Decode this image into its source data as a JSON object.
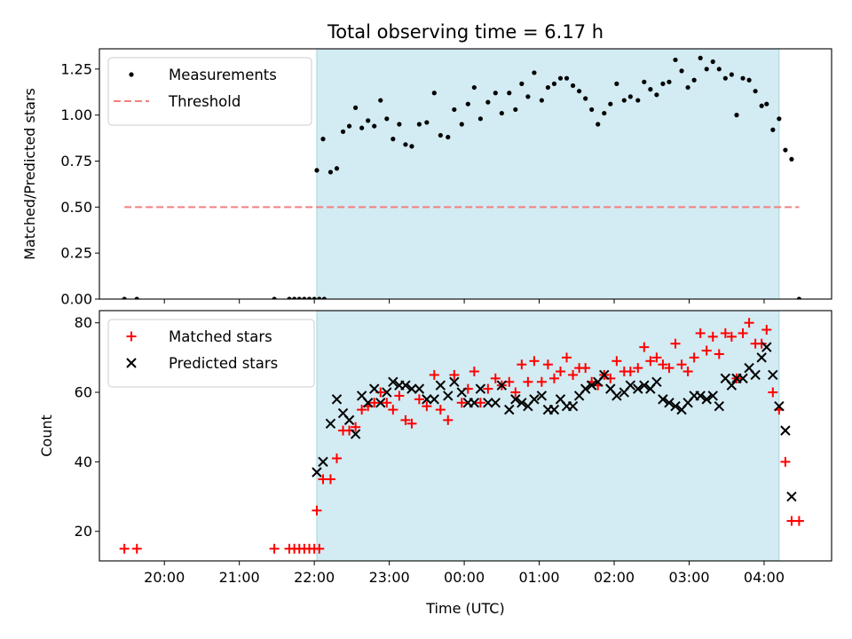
{
  "chart_data": [
    {
      "type": "scatter",
      "title": "Total observing time = 6.17 h",
      "ylabel": "Matched/Predicted stars",
      "xlabel": "",
      "xlim": [
        "19:08",
        "04:54"
      ],
      "ylim": [
        0,
        1.36
      ],
      "yticks": [
        "0.00",
        "0.25",
        "0.50",
        "0.75",
        "1.00",
        "1.25"
      ],
      "grid": false,
      "legend_position": "top-left",
      "observing_window": [
        "22:02",
        "04:12"
      ],
      "observing_window_color": "#d3ebf2",
      "series": [
        {
          "name": "Measurements",
          "marker": "dot",
          "color": "#000000",
          "points": [
            [
              "19:28",
              0.0
            ],
            [
              "19:38",
              0.0
            ],
            [
              "21:28",
              0.0
            ],
            [
              "21:40",
              0.0
            ],
            [
              "21:44",
              0.0
            ],
            [
              "21:48",
              0.0
            ],
            [
              "21:52",
              0.0
            ],
            [
              "21:56",
              0.0
            ],
            [
              "22:00",
              0.0
            ],
            [
              "22:04",
              0.0
            ],
            [
              "22:08",
              0.0
            ],
            [
              "22:02",
              0.7
            ],
            [
              "22:07",
              0.87
            ],
            [
              "22:13",
              0.69
            ],
            [
              "22:18",
              0.71
            ],
            [
              "22:23",
              0.91
            ],
            [
              "22:28",
              0.94
            ],
            [
              "22:33",
              1.04
            ],
            [
              "22:38",
              0.93
            ],
            [
              "22:43",
              0.97
            ],
            [
              "22:48",
              0.94
            ],
            [
              "22:53",
              1.08
            ],
            [
              "22:58",
              0.98
            ],
            [
              "23:03",
              0.87
            ],
            [
              "23:08",
              0.95
            ],
            [
              "23:13",
              0.84
            ],
            [
              "23:18",
              0.83
            ],
            [
              "23:24",
              0.95
            ],
            [
              "23:30",
              0.96
            ],
            [
              "23:36",
              1.12
            ],
            [
              "23:41",
              0.89
            ],
            [
              "23:47",
              0.88
            ],
            [
              "23:52",
              1.03
            ],
            [
              "23:58",
              0.95
            ],
            [
              "00:03",
              1.06
            ],
            [
              "00:08",
              1.15
            ],
            [
              "00:13",
              0.98
            ],
            [
              "00:19",
              1.07
            ],
            [
              "00:25",
              1.12
            ],
            [
              "00:30",
              1.01
            ],
            [
              "00:36",
              1.12
            ],
            [
              "00:41",
              1.03
            ],
            [
              "00:46",
              1.17
            ],
            [
              "00:51",
              1.1
            ],
            [
              "00:56",
              1.23
            ],
            [
              "01:02",
              1.08
            ],
            [
              "01:07",
              1.15
            ],
            [
              "01:12",
              1.17
            ],
            [
              "01:17",
              1.2
            ],
            [
              "01:22",
              1.2
            ],
            [
              "01:27",
              1.16
            ],
            [
              "01:32",
              1.13
            ],
            [
              "01:37",
              1.09
            ],
            [
              "01:42",
              1.03
            ],
            [
              "01:47",
              0.95
            ],
            [
              "01:52",
              1.01
            ],
            [
              "01:57",
              1.06
            ],
            [
              "02:02",
              1.17
            ],
            [
              "02:08",
              1.08
            ],
            [
              "02:13",
              1.1
            ],
            [
              "02:19",
              1.08
            ],
            [
              "02:24",
              1.18
            ],
            [
              "02:29",
              1.14
            ],
            [
              "02:34",
              1.11
            ],
            [
              "02:39",
              1.17
            ],
            [
              "02:44",
              1.18
            ],
            [
              "02:49",
              1.3
            ],
            [
              "02:54",
              1.24
            ],
            [
              "02:59",
              1.15
            ],
            [
              "03:04",
              1.19
            ],
            [
              "03:09",
              1.31
            ],
            [
              "03:14",
              1.25
            ],
            [
              "03:19",
              1.29
            ],
            [
              "03:24",
              1.25
            ],
            [
              "03:29",
              1.2
            ],
            [
              "03:34",
              1.22
            ],
            [
              "03:38",
              1.0
            ],
            [
              "03:43",
              1.2
            ],
            [
              "03:48",
              1.19
            ],
            [
              "03:53",
              1.13
            ],
            [
              "03:58",
              1.05
            ],
            [
              "04:02",
              1.06
            ],
            [
              "04:07",
              0.92
            ],
            [
              "04:12",
              0.98
            ],
            [
              "04:17",
              0.81
            ],
            [
              "04:22",
              0.76
            ],
            [
              "04:28",
              0.0
            ]
          ]
        },
        {
          "name": "Threshold",
          "marker": "dashed-line",
          "color": "#f08080",
          "points": [
            [
              "19:28",
              0.5
            ],
            [
              "04:28",
              0.5
            ]
          ]
        }
      ]
    },
    {
      "type": "scatter",
      "title": "",
      "ylabel": "Count",
      "xlabel": "Time (UTC)",
      "xlim": [
        "19:08",
        "04:54"
      ],
      "ylim": [
        11.5,
        83.5
      ],
      "yticks": [
        "20",
        "40",
        "60",
        "80"
      ],
      "xticks": [
        "20:00",
        "21:00",
        "22:00",
        "23:00",
        "00:00",
        "01:00",
        "02:00",
        "03:00",
        "04:00"
      ],
      "grid": false,
      "legend_position": "top-left",
      "observing_window": [
        "22:02",
        "04:12"
      ],
      "observing_window_color": "#d3ebf2",
      "series": [
        {
          "name": "Matched stars",
          "marker": "plus",
          "color": "#ff0000",
          "points": [
            [
              "19:28",
              15
            ],
            [
              "19:38",
              15
            ],
            [
              "21:28",
              15
            ],
            [
              "21:40",
              15
            ],
            [
              "21:44",
              15
            ],
            [
              "21:48",
              15
            ],
            [
              "21:52",
              15
            ],
            [
              "21:56",
              15
            ],
            [
              "22:00",
              15
            ],
            [
              "22:04",
              15
            ],
            [
              "22:02",
              26
            ],
            [
              "22:07",
              35
            ],
            [
              "22:13",
              35
            ],
            [
              "22:18",
              41
            ],
            [
              "22:23",
              49
            ],
            [
              "22:28",
              49
            ],
            [
              "22:33",
              50
            ],
            [
              "22:38",
              55
            ],
            [
              "22:43",
              56
            ],
            [
              "22:48",
              57
            ],
            [
              "22:53",
              60
            ],
            [
              "22:58",
              57
            ],
            [
              "23:03",
              55
            ],
            [
              "23:08",
              59
            ],
            [
              "23:13",
              52
            ],
            [
              "23:18",
              51
            ],
            [
              "23:24",
              58
            ],
            [
              "23:30",
              56
            ],
            [
              "23:36",
              65
            ],
            [
              "23:41",
              55
            ],
            [
              "23:47",
              52
            ],
            [
              "23:52",
              65
            ],
            [
              "23:58",
              57
            ],
            [
              "00:03",
              61
            ],
            [
              "00:08",
              66
            ],
            [
              "00:13",
              57
            ],
            [
              "00:19",
              61
            ],
            [
              "00:25",
              64
            ],
            [
              "00:30",
              62
            ],
            [
              "00:36",
              63
            ],
            [
              "00:41",
              60
            ],
            [
              "00:46",
              68
            ],
            [
              "00:51",
              63
            ],
            [
              "00:56",
              69
            ],
            [
              "01:02",
              63
            ],
            [
              "01:07",
              68
            ],
            [
              "01:12",
              64
            ],
            [
              "01:17",
              66
            ],
            [
              "01:22",
              70
            ],
            [
              "01:27",
              65
            ],
            [
              "01:32",
              67
            ],
            [
              "01:37",
              67
            ],
            [
              "01:42",
              63
            ],
            [
              "01:47",
              62
            ],
            [
              "01:52",
              65
            ],
            [
              "01:57",
              64
            ],
            [
              "02:02",
              69
            ],
            [
              "02:08",
              66
            ],
            [
              "02:13",
              66
            ],
            [
              "02:19",
              67
            ],
            [
              "02:24",
              73
            ],
            [
              "02:29",
              69
            ],
            [
              "02:34",
              70
            ],
            [
              "02:39",
              68
            ],
            [
              "02:44",
              67
            ],
            [
              "02:49",
              74
            ],
            [
              "02:54",
              68
            ],
            [
              "02:59",
              66
            ],
            [
              "03:04",
              70
            ],
            [
              "03:09",
              77
            ],
            [
              "03:14",
              72
            ],
            [
              "03:19",
              76
            ],
            [
              "03:24",
              71
            ],
            [
              "03:29",
              77
            ],
            [
              "03:34",
              76
            ],
            [
              "03:38",
              64
            ],
            [
              "03:43",
              77
            ],
            [
              "03:48",
              80
            ],
            [
              "03:53",
              74
            ],
            [
              "03:58",
              74
            ],
            [
              "04:02",
              78
            ],
            [
              "04:07",
              60
            ],
            [
              "04:12",
              55
            ],
            [
              "04:17",
              40
            ],
            [
              "04:22",
              23
            ],
            [
              "04:28",
              23
            ]
          ]
        },
        {
          "name": "Predicted stars",
          "marker": "cross",
          "color": "#000000",
          "points": [
            [
              "22:02",
              37
            ],
            [
              "22:07",
              40
            ],
            [
              "22:13",
              51
            ],
            [
              "22:18",
              58
            ],
            [
              "22:23",
              54
            ],
            [
              "22:28",
              52
            ],
            [
              "22:33",
              48
            ],
            [
              "22:38",
              59
            ],
            [
              "22:43",
              57
            ],
            [
              "22:48",
              61
            ],
            [
              "22:53",
              57
            ],
            [
              "22:58",
              60
            ],
            [
              "23:03",
              63
            ],
            [
              "23:08",
              62
            ],
            [
              "23:13",
              62
            ],
            [
              "23:18",
              61
            ],
            [
              "23:24",
              61
            ],
            [
              "23:30",
              58
            ],
            [
              "23:36",
              58
            ],
            [
              "23:41",
              62
            ],
            [
              "23:47",
              59
            ],
            [
              "23:52",
              63
            ],
            [
              "23:58",
              60
            ],
            [
              "00:03",
              57
            ],
            [
              "00:08",
              57
            ],
            [
              "00:13",
              61
            ],
            [
              "00:19",
              57
            ],
            [
              "00:25",
              57
            ],
            [
              "00:30",
              62
            ],
            [
              "00:36",
              55
            ],
            [
              "00:41",
              58
            ],
            [
              "00:46",
              57
            ],
            [
              "00:51",
              56
            ],
            [
              "00:56",
              58
            ],
            [
              "01:02",
              59
            ],
            [
              "01:07",
              55
            ],
            [
              "01:12",
              55
            ],
            [
              "01:17",
              58
            ],
            [
              "01:22",
              56
            ],
            [
              "01:27",
              56
            ],
            [
              "01:32",
              59
            ],
            [
              "01:37",
              61
            ],
            [
              "01:42",
              62
            ],
            [
              "01:47",
              63
            ],
            [
              "01:52",
              65
            ],
            [
              "01:57",
              61
            ],
            [
              "02:02",
              59
            ],
            [
              "02:08",
              60
            ],
            [
              "02:13",
              62
            ],
            [
              "02:19",
              61
            ],
            [
              "02:24",
              62
            ],
            [
              "02:29",
              61
            ],
            [
              "02:34",
              63
            ],
            [
              "02:39",
              58
            ],
            [
              "02:44",
              57
            ],
            [
              "02:49",
              56
            ],
            [
              "02:54",
              55
            ],
            [
              "02:59",
              57
            ],
            [
              "03:04",
              59
            ],
            [
              "03:09",
              59
            ],
            [
              "03:14",
              58
            ],
            [
              "03:19",
              59
            ],
            [
              "03:24",
              56
            ],
            [
              "03:29",
              64
            ],
            [
              "03:34",
              62
            ],
            [
              "03:38",
              64
            ],
            [
              "03:43",
              64
            ],
            [
              "03:48",
              67
            ],
            [
              "03:53",
              65
            ],
            [
              "03:58",
              70
            ],
            [
              "04:02",
              73
            ],
            [
              "04:07",
              65
            ],
            [
              "04:12",
              56
            ],
            [
              "04:17",
              49
            ],
            [
              "04:22",
              30
            ]
          ]
        }
      ]
    }
  ]
}
